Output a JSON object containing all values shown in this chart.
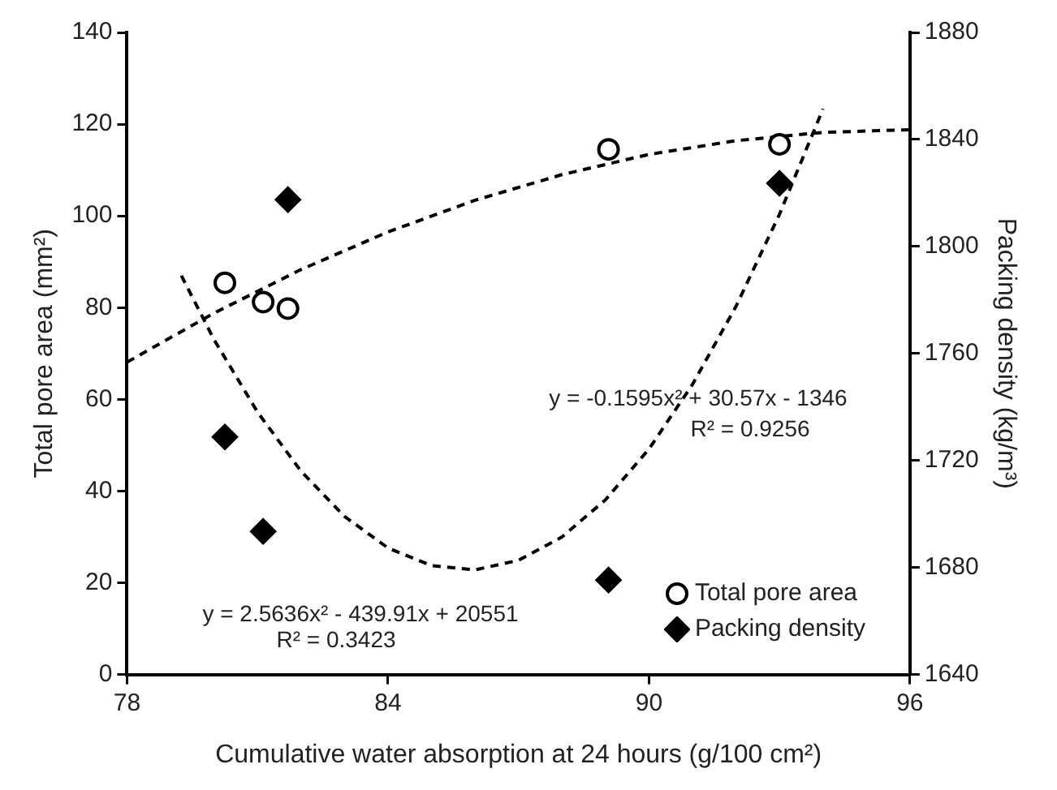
{
  "chart_data": {
    "type": "scatter",
    "xlabel": "Cumulative water absorption at 24 hours (g/100 cm²)",
    "ylabel": "Total pore area (mm²)",
    "y2label": "Packing density (kg/m³)",
    "xlim": [
      78,
      96
    ],
    "xticks": [
      78,
      84,
      90,
      96
    ],
    "ylim": [
      0,
      140
    ],
    "yticks": [
      0,
      20,
      40,
      60,
      80,
      100,
      120,
      140
    ],
    "y2lim": [
      1640,
      1880
    ],
    "y2ticks": [
      1640,
      1680,
      1720,
      1760,
      1800,
      1840,
      1880
    ],
    "grid": false,
    "legend": "bottom right",
    "series": [
      {
        "name": "Total pore area",
        "type": "scatter",
        "marker": "circle",
        "color": "#000000",
        "x": [
          80.25,
          81.13,
          81.7,
          89.07,
          93.0
        ],
        "values": [
          85.4,
          81.2,
          79.8,
          114.5,
          115.6
        ]
      },
      {
        "name": "Packing density",
        "type": "scatter",
        "marker": "diamond",
        "color": "#000000",
        "axis": "y2",
        "x": [
          80.25,
          81.13,
          81.7,
          89.07,
          93.0
        ],
        "values": [
          1728.8,
          1693.5,
          1817.5,
          1675.3,
          1823.6
        ]
      },
      {
        "type": "line",
        "marker": "none",
        "line_style": "dashed",
        "color": "#000000",
        "x": [
          78,
          80,
          82,
          84,
          86,
          88,
          90,
          92,
          94,
          96
        ],
        "values": [
          68.1,
          78.8,
          88.3,
          96.5,
          103.4,
          109.0,
          113.4,
          116.4,
          118.2,
          118.8
        ]
      },
      {
        "type": "line",
        "marker": "none",
        "line_style": "dashed",
        "color": "#000000",
        "axis": "y2",
        "x": [
          79.25,
          80,
          81,
          82,
          83,
          84,
          85,
          86,
          87,
          88,
          89,
          90,
          91,
          92,
          93,
          94
        ],
        "values": [
          1789.1,
          1765.2,
          1738.1,
          1716.0,
          1699.1,
          1687.3,
          1680.7,
          1679.1,
          1682.7,
          1691.4,
          1705.3,
          1724.3,
          1748.4,
          1777.6,
          1812.0,
          1851.4
        ]
      }
    ],
    "annotations": [
      "y = -0.1595x² + 30.57x - 1346",
      "R² = 0.9256",
      "y = 2.5636x² - 439.91x + 20551",
      "R² = 0.3423"
    ]
  }
}
